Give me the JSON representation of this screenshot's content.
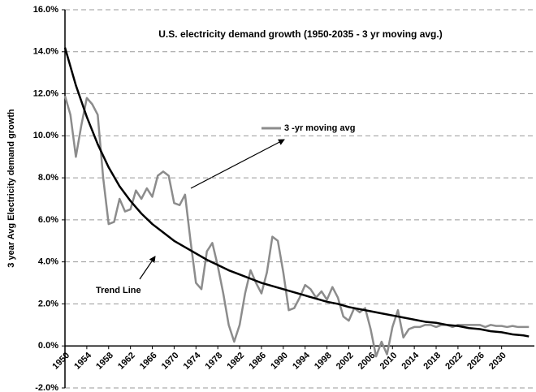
{
  "chart_data": {
    "type": "line",
    "title": "U.S. electricity demand growth (1950-2035 - 3 yr moving avg.)",
    "y_label": "3 year Avg Electricity demand growth",
    "xlim": [
      1950,
      2036
    ],
    "xticks": [
      1950,
      1954,
      1958,
      1962,
      1966,
      1970,
      1974,
      1978,
      1982,
      1986,
      1990,
      1994,
      1998,
      2002,
      2006,
      2010,
      2014,
      2018,
      2022,
      2026,
      2030
    ],
    "ylim": [
      -2,
      16
    ],
    "yticks": [
      {
        "value": -2,
        "label": "-2.0%"
      },
      {
        "value": 0,
        "label": "0.0%"
      },
      {
        "value": 2,
        "label": "2.0%"
      },
      {
        "value": 4,
        "label": "4.0%"
      },
      {
        "value": 6,
        "label": "6.0%"
      },
      {
        "value": 8,
        "label": "8.0%"
      },
      {
        "value": 10,
        "label": "10.0%"
      },
      {
        "value": 12,
        "label": "12.0%"
      },
      {
        "value": 14,
        "label": "14.0%"
      },
      {
        "value": 16,
        "label": "16.0%"
      }
    ],
    "grid": true,
    "series": [
      {
        "name": "3 -yr moving avg",
        "color": "#8c8c8c",
        "x": [
          1950,
          1951,
          1952,
          1953,
          1954,
          1955,
          1956,
          1957,
          1958,
          1959,
          1960,
          1961,
          1962,
          1963,
          1964,
          1965,
          1966,
          1967,
          1968,
          1969,
          1970,
          1971,
          1972,
          1973,
          1974,
          1975,
          1976,
          1977,
          1978,
          1979,
          1980,
          1981,
          1982,
          1983,
          1984,
          1985,
          1986,
          1987,
          1988,
          1989,
          1990,
          1991,
          1992,
          1993,
          1994,
          1995,
          1996,
          1997,
          1998,
          1999,
          2000,
          2001,
          2002,
          2003,
          2004,
          2005,
          2006,
          2007,
          2008,
          2009,
          2010,
          2011,
          2012,
          2013,
          2014,
          2015,
          2016,
          2017,
          2018,
          2019,
          2020,
          2021,
          2022,
          2023,
          2024,
          2025,
          2026,
          2027,
          2028,
          2029,
          2030,
          2031,
          2032,
          2033,
          2034,
          2035
        ],
        "values": [
          11.9,
          11.0,
          9.0,
          10.5,
          11.8,
          11.5,
          11.0,
          8.0,
          5.8,
          5.9,
          7.0,
          6.4,
          6.5,
          7.4,
          7.0,
          7.5,
          7.1,
          8.1,
          8.3,
          8.1,
          6.8,
          6.7,
          7.2,
          5.0,
          3.0,
          2.7,
          4.5,
          4.9,
          3.8,
          2.5,
          1.0,
          0.2,
          1.0,
          2.5,
          3.6,
          3.0,
          2.5,
          3.5,
          5.2,
          5.0,
          3.5,
          1.7,
          1.8,
          2.3,
          2.9,
          2.7,
          2.3,
          2.6,
          2.2,
          2.8,
          2.3,
          1.4,
          1.2,
          1.8,
          1.6,
          1.8,
          0.8,
          -0.5,
          0.2,
          -0.4,
          0.9,
          1.7,
          0.4,
          0.8,
          0.9,
          0.9,
          1.0,
          1.0,
          0.9,
          1.0,
          1.0,
          0.9,
          1.0,
          1.0,
          1.0,
          1.0,
          1.0,
          0.9,
          1.0,
          0.95,
          0.95,
          0.9,
          0.95,
          0.9,
          0.9,
          0.9
        ]
      },
      {
        "name": "Trend Line",
        "color": "#000000",
        "x": [
          1950,
          1952,
          1954,
          1956,
          1958,
          1960,
          1962,
          1964,
          1966,
          1968,
          1970,
          1972,
          1974,
          1976,
          1978,
          1980,
          1982,
          1984,
          1986,
          1988,
          1990,
          1992,
          1994,
          1996,
          1998,
          2000,
          2002,
          2004,
          2006,
          2008,
          2010,
          2012,
          2014,
          2016,
          2018,
          2020,
          2022,
          2024,
          2026,
          2028,
          2030,
          2032,
          2034,
          2035
        ],
        "values": [
          14.2,
          12.4,
          10.9,
          9.6,
          8.5,
          7.6,
          6.9,
          6.3,
          5.8,
          5.4,
          5.0,
          4.7,
          4.4,
          4.1,
          3.85,
          3.6,
          3.4,
          3.2,
          3.0,
          2.85,
          2.7,
          2.55,
          2.4,
          2.25,
          2.1,
          2.0,
          1.85,
          1.75,
          1.65,
          1.55,
          1.45,
          1.35,
          1.25,
          1.15,
          1.1,
          1.0,
          0.95,
          0.85,
          0.8,
          0.7,
          0.65,
          0.55,
          0.5,
          0.45
        ]
      }
    ]
  }
}
